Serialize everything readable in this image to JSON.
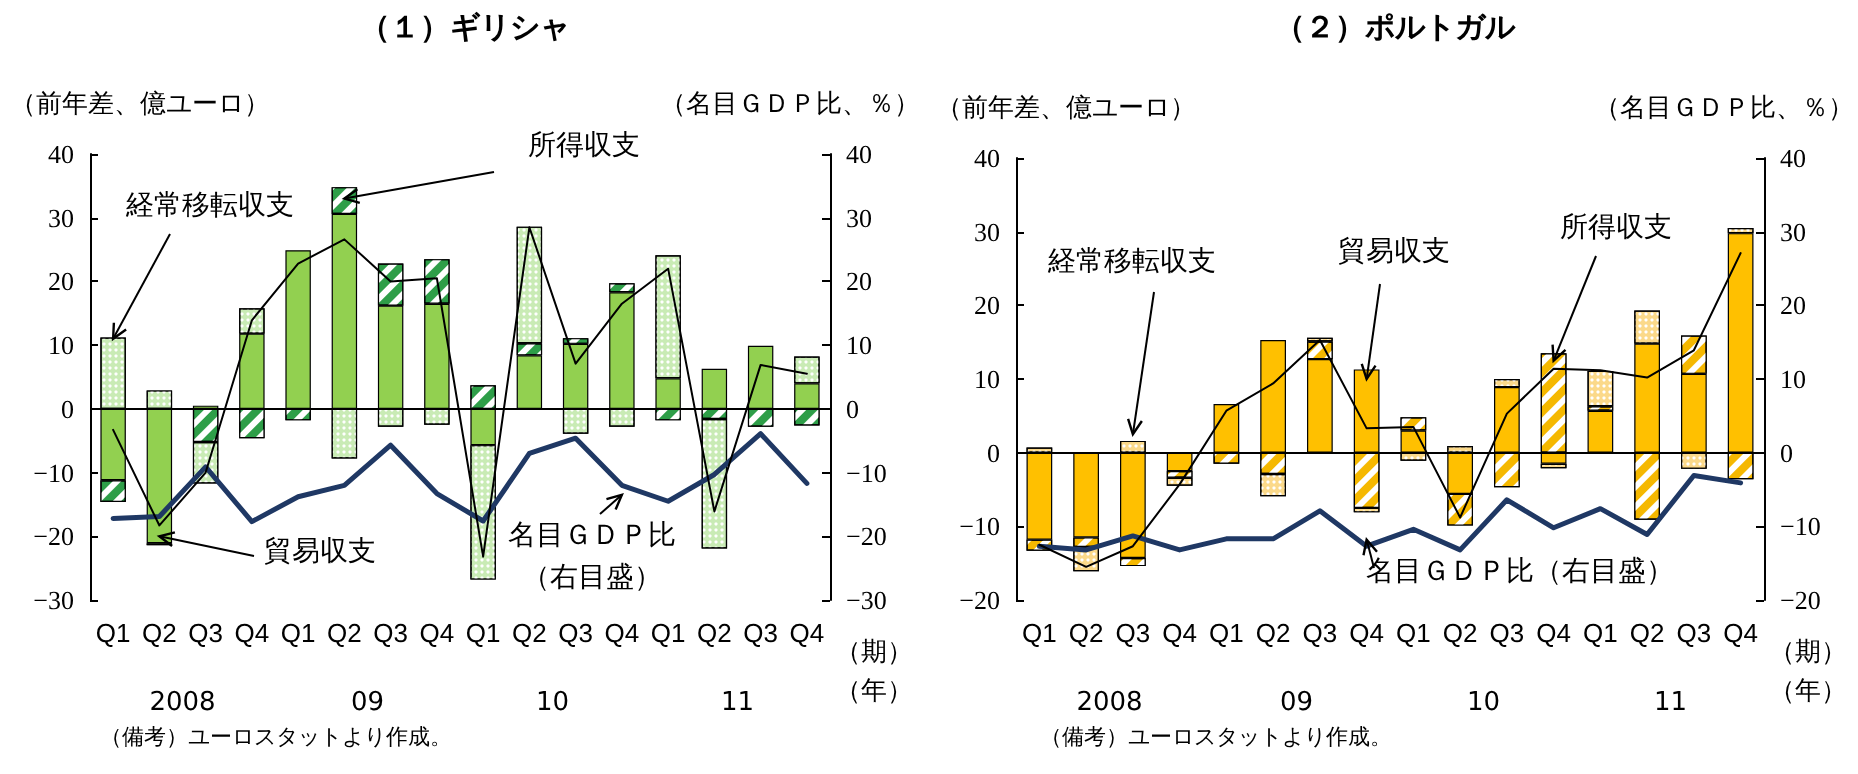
{
  "chart_data": [
    {
      "type": "bar",
      "title": "（１）ギリシャ",
      "ylabel": "（前年差、億ユーロ）",
      "y2label": "（名目ＧＤＰ比、％）",
      "xlabel": "（期）（年）",
      "stacked": true,
      "categories": [
        "Q1",
        "Q2",
        "Q3",
        "Q4",
        "Q1",
        "Q2",
        "Q3",
        "Q4",
        "Q1",
        "Q2",
        "Q3",
        "Q4",
        "Q1",
        "Q2",
        "Q3",
        "Q4"
      ],
      "series": [
        {
          "name": "貿易収支",
          "color": "#92d050",
          "values": [
            -11.2,
            -21.1,
            0.5,
            11.8,
            24.9,
            30.6,
            16.2,
            16.5,
            -5.7,
            8.4,
            10.2,
            18.3,
            4.8,
            6.3,
            9.9,
            4.0
          ]
        },
        {
          "name": "所得収支",
          "color": "#2e9e48",
          "values": [
            -3.4,
            -0.3,
            -5.2,
            -4.6,
            -1.8,
            4.2,
            6.6,
            7.0,
            3.7,
            1.9,
            0.9,
            1.4,
            -1.8,
            -1.6,
            -2.8,
            -2.6
          ]
        },
        {
          "name": "経常移転収支",
          "color": "#c9ebb5",
          "values": [
            11.2,
            2.9,
            -6.5,
            4.0,
            null,
            -7.8,
            -2.8,
            -2.5,
            -21.1,
            18.3,
            -3.9,
            -2.8,
            19.3,
            -20.3,
            null,
            4.2
          ]
        },
        {
          "type": "line",
          "color": "#000000",
          "values": [
            -3.3,
            -18.3,
            -10,
            13.9,
            22.8,
            26.6,
            20,
            20.5,
            -23.2,
            28.5,
            7.1,
            16.5,
            22,
            -16.1,
            6.9,
            5.5
          ]
        },
        {
          "type": "line",
          "name": "名目ＧＤＰ比（右目盛）",
          "axis": "y2",
          "color": "#1f3864",
          "values": [
            -17.2,
            -16.9,
            -9.1,
            -17.7,
            -13.8,
            -12.0,
            -5.7,
            -13.3,
            -17.6,
            -7.0,
            -4.6,
            -12.0,
            -14.5,
            -10.3,
            -3.9,
            -11.7
          ]
        }
      ],
      "ylim": [
        -30,
        40
      ],
      "yticks": [
        -30,
        -20,
        -10,
        0,
        10,
        20,
        30,
        40
      ],
      "y2lim": [
        -30,
        40
      ],
      "y2ticks": [
        -30,
        -20,
        -10,
        0,
        10,
        20,
        30,
        40
      ],
      "marker": "none",
      "ref_lines": [
        {
          "axis": "y",
          "value": 0,
          "color": "#000000"
        }
      ],
      "annotations": [
        "2008",
        "09",
        "10",
        "11",
        "（備考）ユーロスタットより作成。"
      ]
    },
    {
      "type": "bar",
      "title": "（２）ポルトガル",
      "ylabel": "（前年差、億ユーロ）",
      "y2label": "（名目ＧＤＰ比、％）",
      "xlabel": "（期）（年）",
      "stacked": true,
      "categories": [
        "Q1",
        "Q2",
        "Q3",
        "Q4",
        "Q1",
        "Q2",
        "Q3",
        "Q4",
        "Q1",
        "Q2",
        "Q3",
        "Q4",
        "Q1",
        "Q2",
        "Q3",
        "Q4"
      ],
      "series": [
        {
          "name": "貿易収支",
          "color": "#ffc000",
          "values": [
            -11.8,
            -11.5,
            -14.3,
            -2.5,
            6.6,
            15.3,
            12.7,
            11.3,
            3.0,
            -5.6,
            8.9,
            -1.5,
            5.7,
            14.8,
            10.7,
            29.8
          ]
        },
        {
          "name": "所得収支",
          "color": "#f5b800",
          "values": [
            -1.5,
            -1.3,
            -1.1,
            -0.9,
            -1.5,
            -2.9,
            2.4,
            -7.5,
            1.8,
            -4.3,
            -4.7,
            13.5,
            0.6,
            -9.1,
            5.2,
            -3.6
          ]
        },
        {
          "name": "経常移転収支",
          "color": "#fbd98a",
          "values": [
            0.7,
            -3.3,
            1.6,
            -1.1,
            null,
            -3.0,
            0.5,
            -0.6,
            -1.1,
            0.9,
            1.1,
            -0.6,
            4.8,
            4.5,
            -2.2,
            0.7
          ]
        },
        {
          "type": "line",
          "color": "#000000",
          "values": [
            -12.5,
            -15.5,
            -12.7,
            -4.3,
            5.7,
            9.4,
            15.3,
            3.3,
            3.5,
            -8.8,
            5.3,
            11.4,
            11.2,
            10.2,
            13.9,
            27.1
          ]
        },
        {
          "type": "line",
          "name": "名目ＧＤＰ比（右目盛）",
          "axis": "y2",
          "color": "#1f3864",
          "values": [
            -12.7,
            -13.2,
            -11.3,
            -13.2,
            -11.7,
            -11.7,
            -7.9,
            -12.7,
            -10.4,
            -13.2,
            -6.4,
            -10.2,
            -7.6,
            -11.1,
            -3.1,
            -4.1
          ]
        }
      ],
      "ylim": [
        -20,
        40
      ],
      "yticks": [
        -20,
        -10,
        0,
        10,
        20,
        30,
        40
      ],
      "y2lim": [
        -20,
        40
      ],
      "y2ticks": [
        -20,
        -10,
        0,
        10,
        20,
        30,
        40
      ],
      "marker": "none",
      "ref_lines": [
        {
          "axis": "y",
          "value": 0,
          "color": "#000000"
        }
      ],
      "annotations": [
        "2008",
        "09",
        "10",
        "11",
        "（備考）ユーロスタットより作成。"
      ]
    }
  ]
}
